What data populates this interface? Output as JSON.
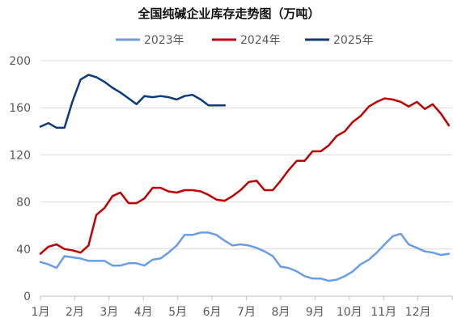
{
  "chart_data": {
    "type": "line",
    "title": "全国纯碱企业库存走势图（万吨）",
    "xlabel": "",
    "ylabel": "",
    "ylim": [
      0,
      200
    ],
    "yticks": [
      0,
      40,
      80,
      120,
      160,
      200
    ],
    "x_range": [
      1,
      13
    ],
    "x_ticks": [
      {
        "label": "1月",
        "x": 1
      },
      {
        "label": "2月",
        "x": 2
      },
      {
        "label": "3月",
        "x": 3
      },
      {
        "label": "4月",
        "x": 4
      },
      {
        "label": "5月",
        "x": 5
      },
      {
        "label": "6月",
        "x": 6
      },
      {
        "label": "7月",
        "x": 7
      },
      {
        "label": "8月",
        "x": 8
      },
      {
        "label": "9月",
        "x": 9
      },
      {
        "label": "10月",
        "x": 10
      },
      {
        "label": "11月",
        "x": 11
      },
      {
        "label": "12月",
        "x": 12
      }
    ],
    "grid": "horizontal",
    "legend": "top-center",
    "series": [
      {
        "name": "2023年",
        "color": "#6a9de8",
        "x": [
          1.0,
          1.23,
          1.47,
          1.7,
          1.93,
          2.17,
          2.4,
          2.63,
          2.87,
          3.1,
          3.33,
          3.57,
          3.8,
          4.03,
          4.27,
          4.5,
          4.73,
          4.97,
          5.2,
          5.43,
          5.67,
          5.9,
          6.13,
          6.37,
          6.6,
          6.83,
          7.07,
          7.3,
          7.53,
          7.77,
          8.0,
          8.23,
          8.47,
          8.7,
          8.93,
          9.17,
          9.4,
          9.63,
          9.87,
          10.1,
          10.33,
          10.57,
          10.8,
          11.03,
          11.27,
          11.5,
          11.73,
          11.97,
          12.2,
          12.43,
          12.67,
          12.9
        ],
        "y": [
          29,
          27,
          24,
          34,
          33,
          32,
          30,
          30,
          30,
          26,
          26,
          28,
          28,
          26,
          31,
          32,
          37,
          43,
          52,
          52,
          54,
          54,
          52,
          47,
          43,
          44,
          43,
          41,
          38,
          34,
          25,
          24,
          21,
          17,
          15,
          15,
          13,
          14,
          17,
          21,
          27,
          31,
          37,
          44,
          51,
          53,
          44,
          41,
          38,
          37,
          35,
          36
        ]
      },
      {
        "name": "2024年",
        "color": "#c00000",
        "x": [
          1.0,
          1.23,
          1.47,
          1.7,
          1.93,
          2.17,
          2.4,
          2.63,
          2.87,
          3.1,
          3.33,
          3.57,
          3.8,
          4.03,
          4.27,
          4.5,
          4.73,
          4.97,
          5.2,
          5.43,
          5.67,
          5.9,
          6.13,
          6.37,
          6.6,
          6.83,
          7.07,
          7.3,
          7.53,
          7.77,
          8.0,
          8.23,
          8.47,
          8.7,
          8.93,
          9.17,
          9.4,
          9.63,
          9.87,
          10.1,
          10.33,
          10.57,
          10.8,
          11.03,
          11.27,
          11.5,
          11.73,
          11.97,
          12.2,
          12.43,
          12.67,
          12.9
        ],
        "y": [
          36,
          42,
          44,
          40,
          39,
          37,
          43,
          69,
          75,
          85,
          88,
          79,
          79,
          83,
          92,
          92,
          89,
          88,
          90,
          90,
          89,
          86,
          82,
          81,
          85,
          90,
          97,
          98,
          90,
          90,
          98,
          107,
          115,
          115,
          123,
          123,
          128,
          136,
          140,
          148,
          153,
          161,
          165,
          168,
          167,
          165,
          161,
          165,
          159,
          163,
          155,
          145
        ]
      },
      {
        "name": "2025年",
        "color": "#0d3a7a",
        "x": [
          1.0,
          1.23,
          1.47,
          1.7,
          1.93,
          2.17,
          2.4,
          2.63,
          2.87,
          3.1,
          3.33,
          3.57,
          3.8,
          4.03,
          4.27,
          4.5,
          4.73,
          4.97,
          5.2,
          5.43,
          5.67,
          5.9,
          6.13,
          6.37
        ],
        "y": [
          144,
          147,
          143,
          143,
          165,
          184,
          188,
          186,
          182,
          177,
          173,
          168,
          163,
          170,
          169,
          170,
          169,
          167,
          170,
          171,
          167,
          162,
          162,
          162
        ]
      }
    ]
  }
}
